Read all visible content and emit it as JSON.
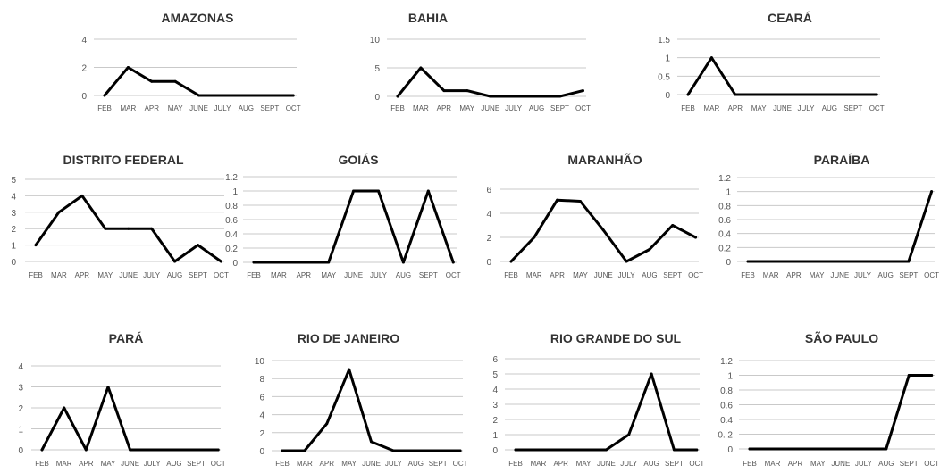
{
  "chart_data": [
    {
      "type": "line",
      "title": "AMAZONAS",
      "categories": [
        "FEB",
        "MAR",
        "APR",
        "MAY",
        "JUNE",
        "JULY",
        "AUG",
        "SEPT",
        "OCT"
      ],
      "yticks": [
        "0",
        "2",
        "4"
      ],
      "ylim": [
        0,
        4
      ],
      "values": [
        0,
        2,
        1,
        1,
        0,
        0,
        0,
        0,
        0
      ],
      "grid": true
    },
    {
      "type": "line",
      "title": "BAHIA",
      "categories": [
        "FEB",
        "MAR",
        "APR",
        "MAY",
        "JUNE",
        "JULY",
        "AUG",
        "SEPT",
        "OCT"
      ],
      "yticks": [
        "0",
        "5",
        "10"
      ],
      "ylim": [
        0,
        10
      ],
      "values": [
        0,
        5,
        1,
        1,
        0,
        0,
        0,
        0,
        1
      ],
      "grid": true
    },
    {
      "type": "line",
      "title": "CEARÁ",
      "categories": [
        "FEB",
        "MAR",
        "APR",
        "MAY",
        "JUNE",
        "JULY",
        "AUG",
        "SEPT",
        "OCT"
      ],
      "yticks": [
        "0",
        "0.5",
        "1",
        "1.5"
      ],
      "ylim": [
        0,
        1.5
      ],
      "values": [
        0,
        1,
        0,
        0,
        0,
        0,
        0,
        0,
        0
      ],
      "grid": true
    },
    {
      "type": "line",
      "title": "DISTRITO FEDERAL",
      "categories": [
        "FEB",
        "MAR",
        "APR",
        "MAY",
        "JUNE",
        "JULY",
        "AUG",
        "SEPT",
        "OCT"
      ],
      "yticks": [
        "0",
        "1",
        "2",
        "3",
        "4",
        "5"
      ],
      "ylim": [
        0,
        5
      ],
      "values": [
        1,
        3,
        4,
        2,
        2,
        2,
        0,
        1,
        0
      ],
      "grid": true
    },
    {
      "type": "line",
      "title": "GOIÁS",
      "categories": [
        "FEB",
        "MAR",
        "APR",
        "MAY",
        "JUNE",
        "JULY",
        "AUG",
        "SEPT",
        "OCT"
      ],
      "yticks": [
        "0",
        "0.2",
        "0.4",
        "0.6",
        "0.8",
        "1",
        "1.2"
      ],
      "ylim": [
        0,
        1.2
      ],
      "values": [
        0,
        0,
        0,
        0,
        1,
        1,
        0,
        1,
        0
      ],
      "grid": true
    },
    {
      "type": "line",
      "title": "MARANHÃO",
      "categories": [
        "FEB",
        "MAR",
        "APR",
        "MAY",
        "JUNE",
        "JULY",
        "AUG",
        "SEPT",
        "OCT"
      ],
      "yticks": [
        "0",
        "2",
        "4",
        "6"
      ],
      "ylim": [
        0,
        6
      ],
      "values": [
        0,
        2,
        5.1,
        5,
        2.6,
        0,
        1,
        3,
        2
      ],
      "grid": true
    },
    {
      "type": "line",
      "title": "PARAÍBA",
      "categories": [
        "FEB",
        "MAR",
        "APR",
        "MAY",
        "JUNE",
        "JULY",
        "AUG",
        "SEPT",
        "OCT"
      ],
      "yticks": [
        "0",
        "0.2",
        "0.4",
        "0.6",
        "0.8",
        "1",
        "1.2"
      ],
      "ylim": [
        0,
        1.2
      ],
      "values": [
        0,
        0,
        0,
        0,
        0,
        0,
        0,
        0,
        1
      ],
      "grid": true
    },
    {
      "type": "line",
      "title": "PARÁ",
      "categories": [
        "FEB",
        "MAR",
        "APR",
        "MAY",
        "JUNE",
        "JULY",
        "AUG",
        "SEPT",
        "OCT"
      ],
      "yticks": [
        "0",
        "1",
        "2",
        "3",
        "4"
      ],
      "ylim": [
        0,
        4
      ],
      "values": [
        0,
        2,
        0,
        3,
        0,
        0,
        0,
        0,
        0
      ],
      "grid": true
    },
    {
      "type": "line",
      "title": "RIO DE JANEIRO",
      "categories": [
        "FEB",
        "MAR",
        "APR",
        "MAY",
        "JUNE",
        "JULY",
        "AUG",
        "SEPT",
        "OCT"
      ],
      "yticks": [
        "0",
        "2",
        "4",
        "6",
        "8",
        "10"
      ],
      "ylim": [
        0,
        10
      ],
      "values": [
        0,
        0,
        3,
        9,
        1,
        0,
        0,
        0,
        0
      ],
      "grid": true
    },
    {
      "type": "line",
      "title": "RIO GRANDE DO SUL",
      "categories": [
        "FEB",
        "MAR",
        "APR",
        "MAY",
        "JUNE",
        "JULY",
        "AUG",
        "SEPT",
        "OCT"
      ],
      "yticks": [
        "0",
        "1",
        "2",
        "3",
        "4",
        "5",
        "6"
      ],
      "ylim": [
        0,
        6
      ],
      "values": [
        0,
        0,
        0,
        0,
        0,
        1,
        5,
        0,
        0
      ],
      "grid": true
    },
    {
      "type": "line",
      "title": "SÃO PAULO",
      "categories": [
        "FEB",
        "MAR",
        "APR",
        "MAY",
        "JUNE",
        "JULY",
        "AUG",
        "SEPT",
        "OCT"
      ],
      "yticks": [
        "0",
        "0. 2",
        "0.4",
        "0.6",
        "0.8",
        "1",
        "1.2"
      ],
      "ylim": [
        0,
        1.2
      ],
      "values": [
        0,
        0,
        0,
        0,
        0,
        0,
        0,
        1,
        1
      ],
      "grid": true
    }
  ]
}
